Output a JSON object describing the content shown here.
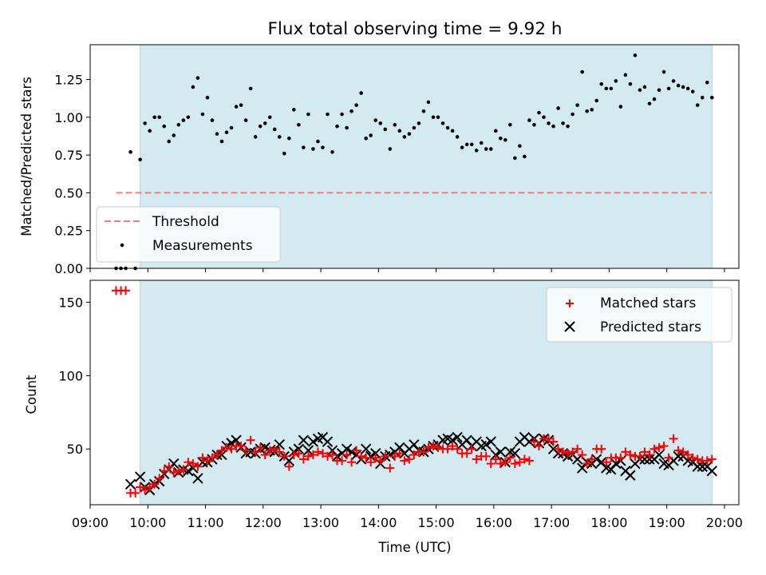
{
  "title": "Flux total observing time = 9.92 h",
  "chart_data": [
    {
      "type": "scatter",
      "ylabel": "Matched/Predicted stars",
      "xlim": [
        "09:00",
        "20:15"
      ],
      "ylim": [
        0,
        1.48
      ],
      "yticks": [
        0.0,
        0.25,
        0.5,
        0.75,
        1.0,
        1.25
      ],
      "ytick_labels": [
        "0.00",
        "0.25",
        "0.50",
        "0.75",
        "1.00",
        "1.25"
      ],
      "shaded_region": {
        "start": "09:52",
        "end": "19:47",
        "color": "#d3eaf1"
      },
      "threshold": {
        "label": "Threshold",
        "value": 0.5,
        "from": "09:27",
        "to": "19:47",
        "color": "#f08080"
      },
      "legend": {
        "position": "lower-left",
        "entries": [
          "Threshold",
          "Measurements"
        ]
      },
      "series": [
        {
          "name": "Measurements",
          "color": "#000000",
          "x": [
            "09:27",
            "09:32",
            "09:37",
            "09:42",
            "09:47",
            "09:52",
            "09:57",
            "10:02",
            "10:07",
            "10:12",
            "10:17",
            "10:22",
            "10:27",
            "10:32",
            "10:37",
            "10:42",
            "10:47",
            "10:52",
            "10:57",
            "11:02",
            "11:07",
            "11:12",
            "11:17",
            "11:22",
            "11:27",
            "11:32",
            "11:37",
            "11:42",
            "11:47",
            "11:52",
            "11:57",
            "12:02",
            "12:07",
            "12:12",
            "12:17",
            "12:22",
            "12:27",
            "12:32",
            "12:37",
            "12:42",
            "12:47",
            "12:52",
            "12:57",
            "13:02",
            "13:07",
            "13:12",
            "13:17",
            "13:22",
            "13:27",
            "13:32",
            "13:37",
            "13:42",
            "13:47",
            "13:52",
            "13:57",
            "14:02",
            "14:07",
            "14:12",
            "14:17",
            "14:22",
            "14:27",
            "14:32",
            "14:37",
            "14:42",
            "14:47",
            "14:52",
            "14:57",
            "15:02",
            "15:07",
            "15:12",
            "15:17",
            "15:22",
            "15:27",
            "15:32",
            "15:37",
            "15:42",
            "15:47",
            "15:52",
            "15:57",
            "16:02",
            "16:07",
            "16:12",
            "16:17",
            "16:22",
            "16:27",
            "16:32",
            "16:37",
            "16:42",
            "16:47",
            "16:52",
            "16:57",
            "17:02",
            "17:07",
            "17:12",
            "17:17",
            "17:22",
            "17:27",
            "17:32",
            "17:37",
            "17:42",
            "17:47",
            "17:52",
            "17:57",
            "18:02",
            "18:07",
            "18:12",
            "18:17",
            "18:22",
            "18:27",
            "18:32",
            "18:37",
            "18:42",
            "18:47",
            "18:52",
            "18:57",
            "19:02",
            "19:07",
            "19:12",
            "19:17",
            "19:22",
            "19:27",
            "19:32",
            "19:37",
            "19:42",
            "19:47"
          ],
          "y": [
            0.0,
            0.0,
            0.0,
            0.77,
            0.0,
            0.72,
            0.96,
            0.91,
            1.0,
            1.0,
            0.94,
            0.84,
            0.88,
            0.95,
            0.98,
            1.0,
            1.2,
            1.26,
            1.02,
            1.13,
            0.98,
            0.89,
            0.84,
            0.9,
            0.93,
            1.07,
            1.08,
            0.98,
            1.19,
            0.87,
            0.94,
            0.96,
            1.0,
            0.92,
            0.87,
            0.76,
            0.86,
            1.05,
            0.95,
            0.8,
            1.02,
            0.79,
            0.84,
            0.8,
            1.02,
            0.77,
            0.94,
            1.02,
            0.93,
            1.04,
            1.08,
            1.16,
            0.86,
            0.88,
            0.98,
            0.96,
            0.92,
            0.79,
            0.95,
            0.91,
            0.87,
            0.89,
            0.93,
            0.96,
            1.04,
            1.1,
            1.0,
            1.0,
            0.96,
            0.93,
            0.91,
            0.87,
            0.8,
            0.82,
            0.82,
            0.78,
            0.83,
            0.79,
            0.79,
            0.91,
            0.86,
            0.85,
            0.95,
            0.73,
            0.81,
            0.74,
            0.98,
            0.95,
            1.03,
            1.0,
            0.96,
            0.94,
            1.06,
            0.96,
            0.94,
            1.02,
            1.08,
            1.3,
            1.04,
            1.05,
            1.11,
            1.22,
            1.19,
            1.19,
            1.24,
            1.07,
            1.28,
            1.22,
            1.41,
            1.18,
            1.2,
            1.09,
            1.12,
            1.18,
            1.3,
            1.19,
            1.24,
            1.21,
            1.2,
            1.19,
            1.17,
            1.08,
            1.13,
            1.23,
            1.13
          ]
        }
      ]
    },
    {
      "type": "scatter",
      "xlabel": "Time (UTC)",
      "ylabel": "Count",
      "xlim": [
        "09:00",
        "20:15"
      ],
      "ylim": [
        12,
        165
      ],
      "yticks": [
        50,
        100,
        150
      ],
      "ytick_labels": [
        "50",
        "100",
        "150"
      ],
      "xticks": [
        "09:00",
        "10:00",
        "11:00",
        "12:00",
        "13:00",
        "14:00",
        "15:00",
        "16:00",
        "17:00",
        "18:00",
        "19:00",
        "20:00"
      ],
      "shaded_region": {
        "start": "09:52",
        "end": "19:47",
        "color": "#d3eaf1"
      },
      "legend": {
        "position": "top-right",
        "entries": [
          "Matched stars",
          "Predicted stars"
        ]
      },
      "x": [
        "09:27",
        "09:32",
        "09:37",
        "09:42",
        "09:47",
        "09:52",
        "09:57",
        "10:02",
        "10:07",
        "10:12",
        "10:17",
        "10:22",
        "10:27",
        "10:32",
        "10:37",
        "10:42",
        "10:47",
        "10:52",
        "10:57",
        "11:02",
        "11:07",
        "11:12",
        "11:17",
        "11:22",
        "11:27",
        "11:32",
        "11:37",
        "11:42",
        "11:47",
        "11:52",
        "11:57",
        "12:02",
        "12:07",
        "12:12",
        "12:17",
        "12:22",
        "12:27",
        "12:32",
        "12:37",
        "12:42",
        "12:47",
        "12:52",
        "12:57",
        "13:02",
        "13:07",
        "13:12",
        "13:17",
        "13:22",
        "13:27",
        "13:32",
        "13:37",
        "13:42",
        "13:47",
        "13:52",
        "13:57",
        "14:02",
        "14:07",
        "14:12",
        "14:17",
        "14:22",
        "14:27",
        "14:32",
        "14:37",
        "14:42",
        "14:47",
        "14:52",
        "14:57",
        "15:02",
        "15:07",
        "15:12",
        "15:17",
        "15:22",
        "15:27",
        "15:32",
        "15:37",
        "15:42",
        "15:47",
        "15:52",
        "15:57",
        "16:02",
        "16:07",
        "16:12",
        "16:17",
        "16:22",
        "16:27",
        "16:32",
        "16:37",
        "16:42",
        "16:47",
        "16:52",
        "16:57",
        "17:02",
        "17:07",
        "17:12",
        "17:17",
        "17:22",
        "17:27",
        "17:32",
        "17:37",
        "17:42",
        "17:47",
        "17:52",
        "17:57",
        "18:02",
        "18:07",
        "18:12",
        "18:17",
        "18:22",
        "18:27",
        "18:32",
        "18:37",
        "18:42",
        "18:47",
        "18:52",
        "18:57",
        "19:02",
        "19:07",
        "19:12",
        "19:17",
        "19:22",
        "19:27",
        "19:32",
        "19:37",
        "19:42",
        "19:47"
      ],
      "series": [
        {
          "name": "Matched stars",
          "marker": "plus",
          "color": "#ff0000",
          "y": [
            158,
            158,
            158,
            20,
            20,
            24,
            22,
            24,
            26,
            30,
            35,
            38,
            34,
            35,
            36,
            41,
            40,
            38,
            44,
            42,
            44,
            46,
            49,
            51,
            50,
            52,
            52,
            49,
            56,
            48,
            51,
            46,
            49,
            50,
            48,
            45,
            38,
            46,
            47,
            43,
            45,
            46,
            48,
            47,
            45,
            46,
            42,
            42,
            46,
            41,
            49,
            45,
            44,
            41,
            44,
            42,
            45,
            37,
            45,
            47,
            42,
            43,
            46,
            48,
            48,
            51,
            52,
            51,
            50,
            50,
            52,
            50,
            47,
            47,
            50,
            43,
            45,
            45,
            40,
            43,
            40,
            41,
            44,
            40,
            41,
            43,
            42,
            55,
            52,
            57,
            57,
            55,
            50,
            48,
            47,
            48,
            50,
            46,
            40,
            43,
            50,
            50,
            41,
            44,
            44,
            44,
            48,
            46,
            45,
            45,
            48,
            46,
            50,
            51,
            52,
            44,
            57,
            49,
            48,
            46,
            44,
            43,
            42,
            42,
            43
          ]
        },
        {
          "name": "Predicted stars",
          "marker": "x",
          "color": "#000000",
          "y": [
            null,
            null,
            null,
            26,
            null,
            31,
            24,
            22,
            26,
            28,
            33,
            36,
            40,
            34,
            36,
            35,
            37,
            30,
            41,
            41,
            43,
            46,
            46,
            52,
            54,
            56,
            51,
            47,
            48,
            47,
            50,
            51,
            49,
            48,
            53,
            45,
            42,
            48,
            50,
            56,
            49,
            55,
            57,
            58,
            55,
            49,
            45,
            47,
            50,
            48,
            46,
            43,
            50,
            45,
            47,
            40,
            45,
            46,
            48,
            51,
            47,
            50,
            53,
            49,
            48,
            50,
            52,
            53,
            56,
            57,
            56,
            58,
            53,
            56,
            52,
            55,
            52,
            53,
            55,
            46,
            48,
            41,
            48,
            47,
            55,
            58,
            55,
            57,
            54,
            57,
            56,
            50,
            47,
            47,
            45,
            46,
            43,
            37,
            41,
            40,
            43,
            41,
            37,
            36,
            40,
            42,
            35,
            32,
            40,
            43,
            43,
            43,
            43,
            46,
            40,
            39,
            42,
            45,
            45,
            42,
            41,
            38,
            38,
            38,
            35
          ]
        }
      ]
    }
  ]
}
